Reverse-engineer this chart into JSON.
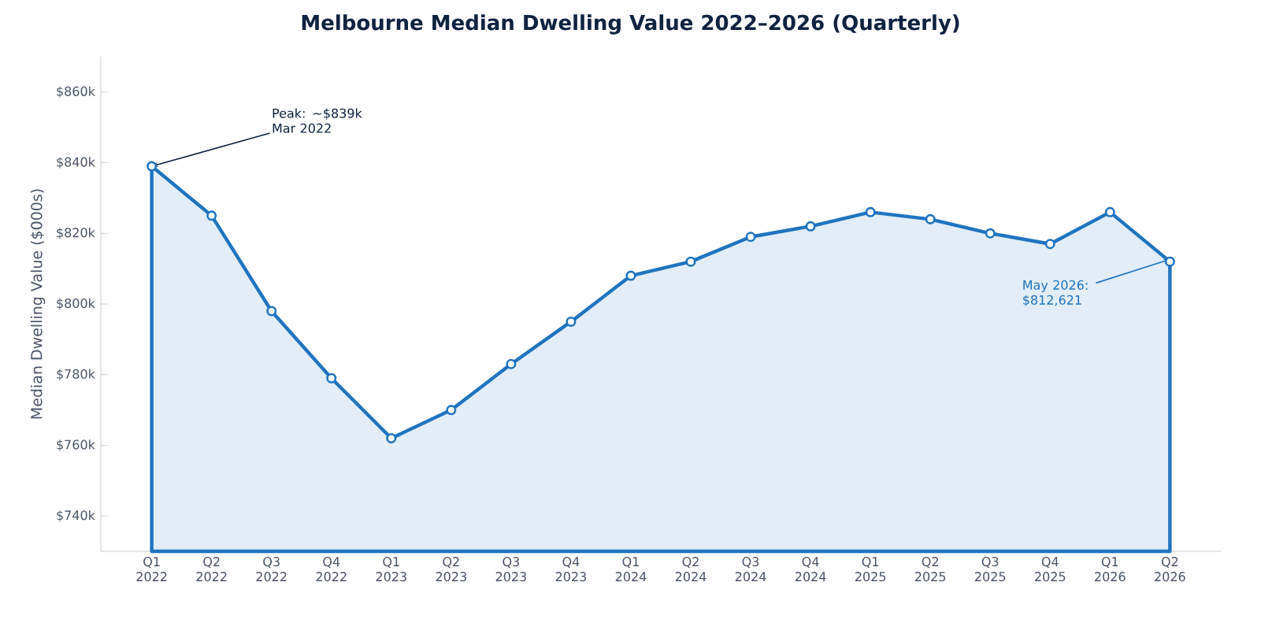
{
  "chart_data": {
    "type": "area",
    "title": "Melbourne Median Dwelling Value 2022–2026 (Quarterly)",
    "ylabel": "Median Dwelling Value ($000s)",
    "categories": [
      "Q1 2022",
      "Q2 2022",
      "Q3 2022",
      "Q4 2022",
      "Q1 2023",
      "Q2 2023",
      "Q3 2023",
      "Q4 2023",
      "Q1 2024",
      "Q2 2024",
      "Q3 2024",
      "Q4 2024",
      "Q1 2025",
      "Q2 2025",
      "Q3 2025",
      "Q4 2025",
      "Q1 2026",
      "Q2 2026"
    ],
    "series": [
      {
        "color": "#1f74c0",
        "values": [
          839,
          825,
          798,
          779,
          762,
          770,
          783,
          795,
          808,
          812,
          819,
          822,
          826,
          824,
          820,
          817,
          826,
          812
        ]
      }
    ],
    "ylim": [
      730,
      870
    ],
    "yticks": [
      {
        "value": 740,
        "label": "$740k"
      },
      {
        "value": 760,
        "label": "$760k"
      },
      {
        "value": 780,
        "label": "$780k"
      },
      {
        "value": 800,
        "label": "$800k"
      },
      {
        "value": 820,
        "label": "$820k"
      },
      {
        "value": 840,
        "label": "$840k"
      },
      {
        "value": 860,
        "label": "$860k"
      }
    ],
    "marker": "circle",
    "annotations": [
      {
        "text": "Peak: ~$839k Mar 2022",
        "x": "Q1 2022",
        "y": 839
      },
      {
        "text": "May 2026: $812,621",
        "x": "Q2 2026",
        "y": 812.621
      }
    ]
  }
}
